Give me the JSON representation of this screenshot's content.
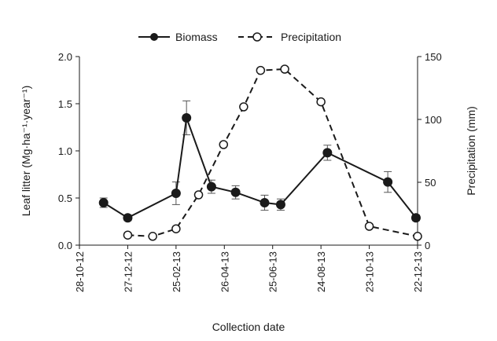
{
  "chart_data": {
    "type": "line",
    "xlabel": "Collection date",
    "ylabel": "Leaf litter (Mg·ha⁻¹·year⁻¹)",
    "y2label": "Precipitation (mm)",
    "x_ticks": [
      "28-10-12",
      "27-12-12",
      "25-02-13",
      "26-04-13",
      "25-06-13",
      "24-08-13",
      "23-10-13",
      "22-12-13"
    ],
    "xlim": [
      "2012-10-28",
      "2013-12-22"
    ],
    "ylim": [
      0,
      2.0
    ],
    "y_ticks": [
      "0.0",
      "0.5",
      "1.0",
      "1.5",
      "2.0"
    ],
    "y2lim": [
      0,
      150
    ],
    "y2_ticks": [
      "0",
      "50",
      "100",
      "150"
    ],
    "grid": false,
    "legend_position": "top",
    "series": [
      {
        "name": "Biomass",
        "axis": "left",
        "style": "solid",
        "marker": "filled-circle",
        "x": [
          "2012-11-27",
          "2012-12-27",
          "2013-02-25",
          "2013-03-10",
          "2013-04-10",
          "2013-05-10",
          "2013-06-15",
          "2013-07-05",
          "2013-09-01",
          "2013-11-15",
          "2013-12-20"
        ],
        "values": [
          0.45,
          0.29,
          0.55,
          1.35,
          0.62,
          0.56,
          0.45,
          0.43,
          0.98,
          0.67,
          0.29
        ],
        "errors": [
          0.05,
          0.03,
          0.12,
          0.18,
          0.07,
          0.07,
          0.08,
          0.06,
          0.08,
          0.11,
          0.03
        ]
      },
      {
        "name": "Precipitation",
        "axis": "right",
        "style": "dashed",
        "marker": "open-circle",
        "x": [
          "2012-12-27",
          "2013-01-27",
          "2013-02-25",
          "2013-03-25",
          "2013-04-25",
          "2013-05-20",
          "2013-06-10",
          "2013-07-10",
          "2013-08-24",
          "2013-10-23",
          "2013-12-22"
        ],
        "values": [
          8,
          7,
          13,
          40,
          80,
          110,
          139,
          140,
          114,
          15,
          7
        ]
      }
    ]
  }
}
